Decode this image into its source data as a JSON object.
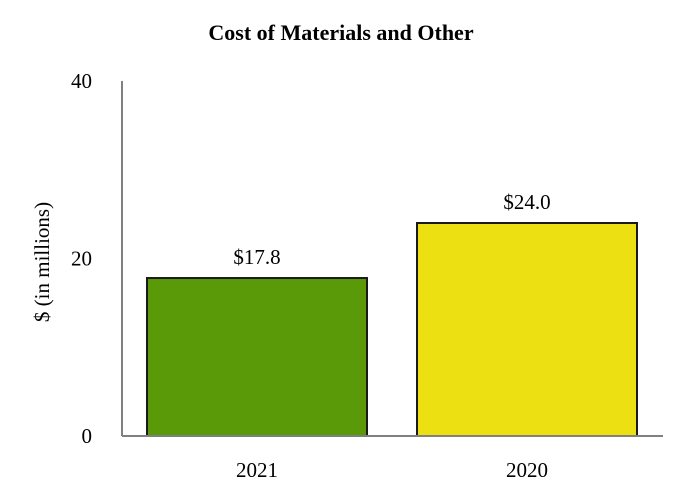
{
  "chart_data": {
    "type": "bar",
    "title": "Cost of Materials and Other",
    "xlabel": "",
    "ylabel": "$ (in millions)",
    "ylim": [
      0,
      40
    ],
    "yticks": [
      "0",
      "20",
      "40"
    ],
    "ytick_values": [
      0,
      20,
      40
    ],
    "categories": [
      "2021",
      "2020"
    ],
    "values": [
      17.8,
      24.0
    ],
    "data_labels": [
      "$17.8",
      "$24.0"
    ],
    "colors": [
      "#5a9a08",
      "#ecdf12"
    ],
    "grid": false,
    "legend": "none"
  },
  "style": {
    "axis_color": "#808080",
    "bar_edge_color": "#1a1a1a"
  }
}
